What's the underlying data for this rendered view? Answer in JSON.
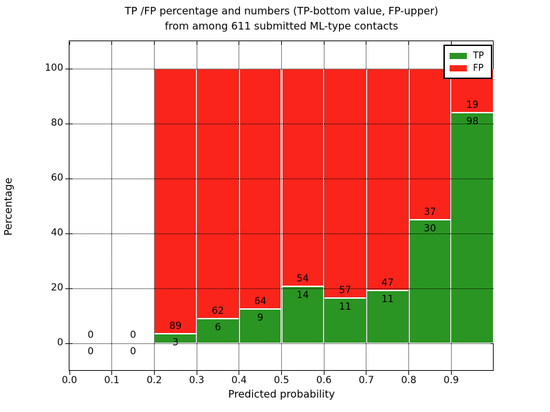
{
  "title": {
    "line1": "TP /FP percentage and numbers (TP-bottom value, FP-upper)",
    "line2": "from among 611 submitted ML-type contacts"
  },
  "axes": {
    "xlabel": "Predicted probability",
    "ylabel": "Percentage",
    "xticks": [
      {
        "v": 0.0,
        "label": "0.0"
      },
      {
        "v": 0.1,
        "label": "0.1"
      },
      {
        "v": 0.2,
        "label": "0.2"
      },
      {
        "v": 0.3,
        "label": "0.3"
      },
      {
        "v": 0.4,
        "label": "0.4"
      },
      {
        "v": 0.5,
        "label": "0.5"
      },
      {
        "v": 0.6,
        "label": "0.6"
      },
      {
        "v": 0.7,
        "label": "0.7"
      },
      {
        "v": 0.8,
        "label": "0.8"
      },
      {
        "v": 0.9,
        "label": "0.9"
      }
    ],
    "yticks": [
      {
        "v": 0,
        "label": "0"
      },
      {
        "v": 20,
        "label": "20"
      },
      {
        "v": 40,
        "label": "40"
      },
      {
        "v": 60,
        "label": "60"
      },
      {
        "v": 80,
        "label": "80"
      },
      {
        "v": 100,
        "label": "100"
      }
    ]
  },
  "legend": {
    "items": [
      {
        "label": "TP",
        "color_key": "tp"
      },
      {
        "label": "FP",
        "color_key": "fp"
      }
    ]
  },
  "colors": {
    "tp": "#2a9522",
    "fp": "#fa241b",
    "grid": "#000000",
    "frame": "#000000",
    "background": "#ffffff"
  },
  "chart_data": {
    "type": "bar",
    "stacked": true,
    "normalization": "percent-of-bin-total",
    "grid": true,
    "legend_position": "upper-right",
    "title": "TP /FP percentage and numbers (TP-bottom value, FP-upper)\nfrom among 611 submitted ML-type contacts",
    "xlabel": "Predicted probability",
    "ylabel": "Percentage",
    "xlim": [
      0.0,
      1.0
    ],
    "ylim": [
      -10,
      110
    ],
    "bin_width": 0.1,
    "total_contacts": 611,
    "categories": [
      "0.0-0.1",
      "0.1-0.2",
      "0.2-0.3",
      "0.3-0.4",
      "0.4-0.5",
      "0.5-0.6",
      "0.6-0.7",
      "0.7-0.8",
      "0.8-0.9",
      "0.9-1.0"
    ],
    "series": [
      {
        "name": "TP",
        "counts": [
          0,
          0,
          3,
          6,
          9,
          14,
          11,
          11,
          30,
          98
        ]
      },
      {
        "name": "FP",
        "counts": [
          0,
          0,
          89,
          62,
          64,
          54,
          57,
          47,
          37,
          19
        ]
      }
    ],
    "tp_percent_of_bin": [
      null,
      null,
      3.3,
      8.8,
      12.3,
      20.6,
      16.2,
      19.0,
      44.8,
      83.8
    ]
  }
}
